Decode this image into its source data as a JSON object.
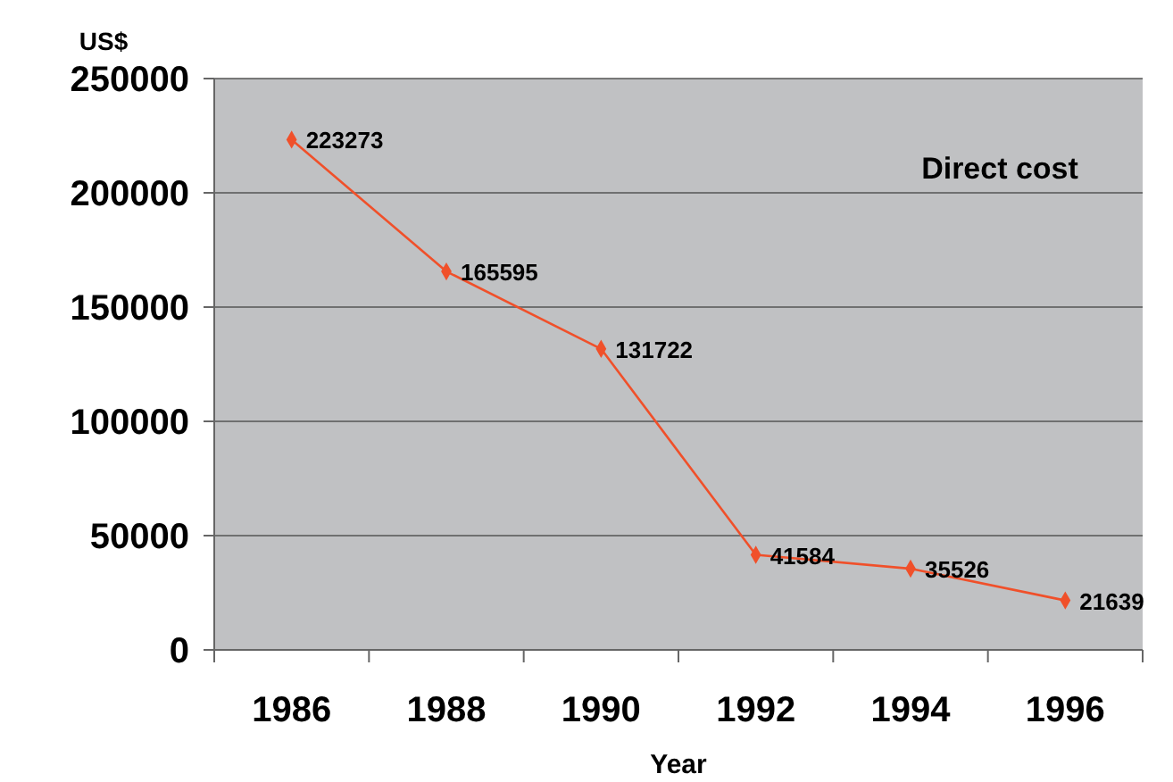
{
  "chart_data": {
    "type": "line",
    "title": "Direct cost",
    "xlabel": "Year",
    "ylabel": "US$",
    "categories": [
      "1986",
      "1988",
      "1990",
      "1992",
      "1994",
      "1996"
    ],
    "series": [
      {
        "color": "#f0502a",
        "values": [
          223273,
          165595,
          131722,
          41584,
          35526,
          21639
        ]
      }
    ],
    "ylim": [
      0,
      250000
    ],
    "yticks": [
      0,
      50000,
      100000,
      150000,
      200000,
      250000
    ],
    "grid": "y",
    "marker": "diamond",
    "line_style": "solid",
    "data_labels": true
  }
}
